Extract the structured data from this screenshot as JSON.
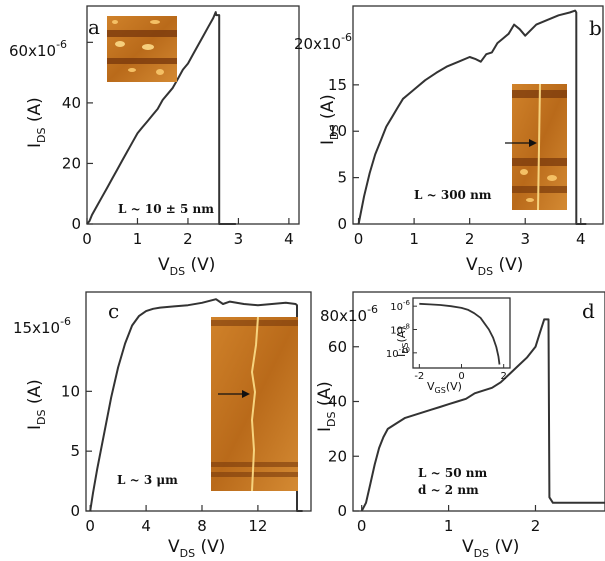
{
  "chart_data": [
    {
      "type": "line",
      "panel_label": "a",
      "exponent_label": "x10",
      "exponent_sup": "-6",
      "ylabel": {
        "main": "I",
        "sub": "DS",
        "unit": " (A)"
      },
      "xlabel": {
        "main": "V",
        "sub": "DS",
        "unit": " (V)"
      },
      "xlim": [
        0,
        4.2
      ],
      "ylim": [
        0,
        72
      ],
      "xticks": [
        0,
        1,
        2,
        3,
        4
      ],
      "yticks": [
        0,
        20,
        40,
        60
      ],
      "ytick_labels": [
        "0",
        "20",
        "40",
        "60"
      ],
      "annotation": "L ~ 10 ± 5 nm",
      "x": [
        0,
        0.05,
        0.1,
        0.2,
        0.3,
        0.4,
        0.5,
        0.6,
        0.7,
        0.8,
        0.9,
        1.0,
        1.1,
        1.2,
        1.3,
        1.4,
        1.5,
        1.6,
        1.7,
        1.8,
        1.9,
        2.0,
        2.1,
        2.2,
        2.3,
        2.4,
        2.5,
        2.55,
        2.56,
        2.62,
        2.62,
        2.95
      ],
      "y": [
        0,
        1,
        3,
        6,
        9,
        12,
        15,
        18,
        21,
        24,
        27,
        30,
        32,
        34,
        36,
        38,
        41,
        43,
        45,
        48,
        51,
        53,
        56,
        59,
        62,
        65,
        68,
        70,
        69,
        69,
        0,
        0
      ],
      "inset_image": true
    },
    {
      "type": "line",
      "panel_label": "b",
      "exponent_label": "20x10",
      "exponent_sup": "-6",
      "ylabel": {
        "main": "I",
        "sub": "DS",
        "unit": " (A)"
      },
      "xlabel": {
        "main": "V",
        "sub": "DS",
        "unit": " (V)"
      },
      "xlim": [
        -0.1,
        4.4
      ],
      "ylim": [
        0,
        23.5
      ],
      "xticks": [
        0,
        1,
        2,
        3,
        4
      ],
      "yticks": [
        0,
        5,
        10,
        15
      ],
      "ytick_labels": [
        "0",
        "5",
        "10",
        "15"
      ],
      "annotation": "L ~ 300 nm",
      "x": [
        0,
        0.1,
        0.2,
        0.3,
        0.4,
        0.5,
        0.6,
        0.7,
        0.8,
        0.9,
        1.0,
        1.2,
        1.4,
        1.6,
        1.8,
        2.0,
        2.1,
        2.2,
        2.3,
        2.4,
        2.5,
        2.6,
        2.7,
        2.8,
        2.9,
        3.0,
        3.2,
        3.4,
        3.6,
        3.8,
        3.9,
        3.92,
        3.92,
        4.1
      ],
      "y": [
        0,
        3,
        5.5,
        7.5,
        9,
        10.5,
        11.5,
        12.5,
        13.5,
        14,
        14.5,
        15.5,
        16.3,
        17,
        17.5,
        18,
        17.8,
        17.5,
        18.3,
        18.5,
        19.5,
        20,
        20.5,
        21.5,
        21,
        20.3,
        21.5,
        22,
        22.5,
        22.8,
        23,
        22.8,
        0,
        0
      ],
      "inset_image": true
    },
    {
      "type": "line",
      "panel_label": "c",
      "exponent_label": "15x10",
      "exponent_sup": "-6",
      "ylabel": {
        "main": "I",
        "sub": "DS",
        "unit": " (A)"
      },
      "xlabel": {
        "main": "V",
        "sub": "DS",
        "unit": " (V)"
      },
      "xlim": [
        -0.3,
        15.8
      ],
      "ylim": [
        0,
        18.3
      ],
      "xticks": [
        0,
        4,
        8,
        12
      ],
      "yticks": [
        0,
        5,
        10
      ],
      "ytick_labels": [
        "0",
        "5",
        "10"
      ],
      "annotation": "L ~ 3 μm",
      "x": [
        0,
        0.2,
        0.5,
        1.0,
        1.5,
        2.0,
        2.5,
        3.0,
        3.5,
        4.0,
        4.5,
        5.0,
        6.0,
        7.0,
        8.0,
        9.0,
        9.5,
        10.0,
        11.0,
        12.0,
        13.0,
        14.0,
        14.7,
        14.8,
        14.8,
        15.2
      ],
      "y": [
        0,
        1.5,
        3.5,
        6.5,
        9.5,
        12,
        14,
        15.5,
        16.3,
        16.7,
        16.9,
        17,
        17.1,
        17.2,
        17.4,
        17.7,
        17.3,
        17.5,
        17.3,
        17.2,
        17.3,
        17.4,
        17.3,
        17.2,
        0,
        0
      ],
      "inset_image": true
    },
    {
      "type": "line",
      "panel_label": "d",
      "exponent_label": "80x10",
      "exponent_sup": "-6",
      "ylabel": {
        "main": "I",
        "sub": "DS",
        "unit": " (A)"
      },
      "xlabel": {
        "main": "V",
        "sub": "DS",
        "unit": " (V)"
      },
      "xlim": [
        -0.1,
        2.8
      ],
      "ylim": [
        0,
        80
      ],
      "xticks": [
        0,
        1,
        2
      ],
      "yticks": [
        0,
        20,
        40,
        60
      ],
      "ytick_labels": [
        "0",
        "20",
        "40",
        "60"
      ],
      "annotation_lines": [
        "L ~ 50 nm",
        "d ~ 2 nm"
      ],
      "x": [
        0,
        0.05,
        0.1,
        0.15,
        0.2,
        0.25,
        0.3,
        0.4,
        0.5,
        0.6,
        0.7,
        0.8,
        0.9,
        1.0,
        1.1,
        1.2,
        1.3,
        1.4,
        1.5,
        1.6,
        1.7,
        1.8,
        1.9,
        2.0,
        2.05,
        2.1,
        2.15,
        2.16,
        2.2,
        2.4,
        2.6,
        2.8
      ],
      "y": [
        0,
        3,
        10,
        17,
        23,
        27,
        30,
        32,
        34,
        35,
        36,
        37,
        38,
        39,
        40,
        41,
        43,
        44,
        45,
        47,
        50,
        53,
        56,
        60,
        65,
        70,
        70,
        5,
        3,
        3,
        3,
        3
      ],
      "inset": {
        "ylabel": {
          "main": "I",
          "sub": "DS",
          "unit": "(A)"
        },
        "xlabel": {
          "main": "V",
          "sub": "GS",
          "unit": "(V)"
        },
        "xlim": [
          -2.3,
          2.3
        ],
        "ylim_exponent": [
          -11.3,
          -5.3
        ],
        "xticks": [
          -2,
          0,
          2
        ],
        "xtick_labels": [
          "-2",
          "0",
          "2"
        ],
        "ytick_exponents": [
          -6,
          -8,
          -10
        ],
        "ytick_base": "10",
        "ytick_sups": [
          "-6",
          "-8",
          "-10"
        ],
        "x": [
          -2.0,
          -1.5,
          -1.0,
          -0.5,
          0.0,
          0.3,
          0.6,
          0.9,
          1.1,
          1.3,
          1.5,
          1.65,
          1.75,
          1.8
        ],
        "y_exponent": [
          -5.8,
          -5.85,
          -5.9,
          -6.0,
          -6.15,
          -6.3,
          -6.6,
          -7.0,
          -7.5,
          -8.0,
          -8.7,
          -9.5,
          -10.3,
          -11.0
        ]
      }
    }
  ],
  "colors": {
    "line": "#333333",
    "frame": "#333333",
    "afm_base": "#c8781e",
    "afm_dark": "#6b3008",
    "afm_light": "#f4c065"
  }
}
